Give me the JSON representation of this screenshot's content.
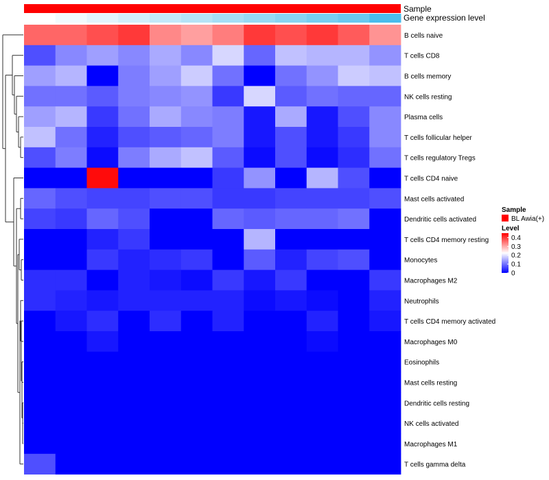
{
  "chart_data": {
    "type": "heatmap",
    "annotation_rows": [
      "Sample",
      "Gene expression level"
    ],
    "sample_annotation_color": "#ff0000",
    "gene_expression_annotation": [
      0.0,
      0.08,
      0.16,
      0.25,
      0.33,
      0.41,
      0.5,
      0.58,
      0.66,
      0.75,
      0.83,
      1.0
    ],
    "rows": [
      "B cells naive",
      "T cells CD8",
      "B cells memory",
      "NK cells resting",
      "Plasma cells",
      "T cells follicular helper",
      "T cells regulatory  Tregs",
      "T cells CD4 naive",
      "Mast cells activated",
      "Dendritic cells activated",
      "T cells CD4 memory resting",
      "Monocytes",
      "Macrophages M2",
      "Neutrophils",
      "T cells CD4 memory activated",
      "Macrophages M0",
      "Eosinophils",
      "Mast cells resting",
      "Dendritic cells resting",
      "NK cells activated",
      "Macrophages M1",
      "T cells gamma delta"
    ],
    "n_columns": 12,
    "values": [
      [
        0.36,
        0.36,
        0.38,
        0.4,
        0.33,
        0.31,
        0.34,
        0.4,
        0.38,
        0.4,
        0.37,
        0.32
      ],
      [
        0.07,
        0.12,
        0.14,
        0.12,
        0.15,
        0.12,
        0.19,
        0.09,
        0.17,
        0.16,
        0.16,
        0.13
      ],
      [
        0.14,
        0.16,
        0.0,
        0.11,
        0.14,
        0.18,
        0.1,
        0.0,
        0.1,
        0.13,
        0.18,
        0.17
      ],
      [
        0.1,
        0.1,
        0.08,
        0.11,
        0.12,
        0.13,
        0.05,
        0.19,
        0.08,
        0.1,
        0.09,
        0.09
      ],
      [
        0.14,
        0.16,
        0.05,
        0.1,
        0.15,
        0.12,
        0.11,
        0.02,
        0.15,
        0.02,
        0.07,
        0.12
      ],
      [
        0.17,
        0.1,
        0.03,
        0.07,
        0.08,
        0.09,
        0.11,
        0.02,
        0.07,
        0.02,
        0.05,
        0.12
      ],
      [
        0.07,
        0.11,
        0.01,
        0.11,
        0.15,
        0.17,
        0.08,
        0.01,
        0.07,
        0.01,
        0.04,
        0.1
      ],
      [
        0.0,
        0.0,
        0.44,
        0.0,
        0.0,
        0.0,
        0.05,
        0.13,
        0.0,
        0.16,
        0.07,
        0.0
      ],
      [
        0.09,
        0.07,
        0.06,
        0.06,
        0.07,
        0.07,
        0.05,
        0.05,
        0.06,
        0.06,
        0.06,
        0.07
      ],
      [
        0.06,
        0.05,
        0.09,
        0.07,
        0.0,
        0.0,
        0.09,
        0.08,
        0.09,
        0.09,
        0.1,
        0.0
      ],
      [
        0.0,
        0.0,
        0.03,
        0.05,
        0.0,
        0.0,
        0.0,
        0.16,
        0.0,
        0.0,
        0.0,
        0.0
      ],
      [
        0.0,
        0.0,
        0.05,
        0.03,
        0.04,
        0.05,
        0.0,
        0.08,
        0.03,
        0.06,
        0.07,
        0.0
      ],
      [
        0.04,
        0.04,
        0.0,
        0.03,
        0.02,
        0.01,
        0.05,
        0.02,
        0.05,
        0.0,
        0.0,
        0.05
      ],
      [
        0.04,
        0.03,
        0.02,
        0.03,
        0.03,
        0.03,
        0.03,
        0.01,
        0.02,
        0.01,
        0.0,
        0.03
      ],
      [
        0.0,
        0.02,
        0.04,
        0.0,
        0.04,
        0.0,
        0.03,
        0.0,
        0.0,
        0.03,
        0.0,
        0.02
      ],
      [
        0.0,
        0.0,
        0.02,
        0.0,
        0.0,
        0.0,
        0.0,
        0.0,
        0.0,
        0.01,
        0.0,
        0.0
      ],
      [
        0.0,
        0.0,
        0.0,
        0.0,
        0.0,
        0.0,
        0.0,
        0.0,
        0.0,
        0.0,
        0.0,
        0.0
      ],
      [
        0.0,
        0.0,
        0.0,
        0.0,
        0.0,
        0.0,
        0.0,
        0.0,
        0.0,
        0.0,
        0.0,
        0.0
      ],
      [
        0.0,
        0.0,
        0.0,
        0.0,
        0.0,
        0.0,
        0.0,
        0.0,
        0.0,
        0.0,
        0.0,
        0.0
      ],
      [
        0.0,
        0.0,
        0.0,
        0.0,
        0.0,
        0.0,
        0.0,
        0.0,
        0.0,
        0.0,
        0.0,
        0.0
      ],
      [
        0.0,
        0.0,
        0.0,
        0.0,
        0.0,
        0.0,
        0.0,
        0.0,
        0.0,
        0.0,
        0.0,
        0.0
      ],
      [
        0.07,
        0.0,
        0.0,
        0.0,
        0.0,
        0.0,
        0.0,
        0.0,
        0.0,
        0.0,
        0.0,
        0.0
      ]
    ],
    "color_scale": {
      "low": "#0000ff",
      "mid": "#ffffff",
      "high": "#ff0000",
      "range": [
        0,
        0.45
      ]
    },
    "legend": {
      "position": "right",
      "sample_title": "Sample",
      "sample_entry": "BL Awia(+)",
      "level_title": "Level",
      "level_ticks": [
        0.4,
        0.3,
        0.2,
        0.1,
        0
      ]
    }
  }
}
